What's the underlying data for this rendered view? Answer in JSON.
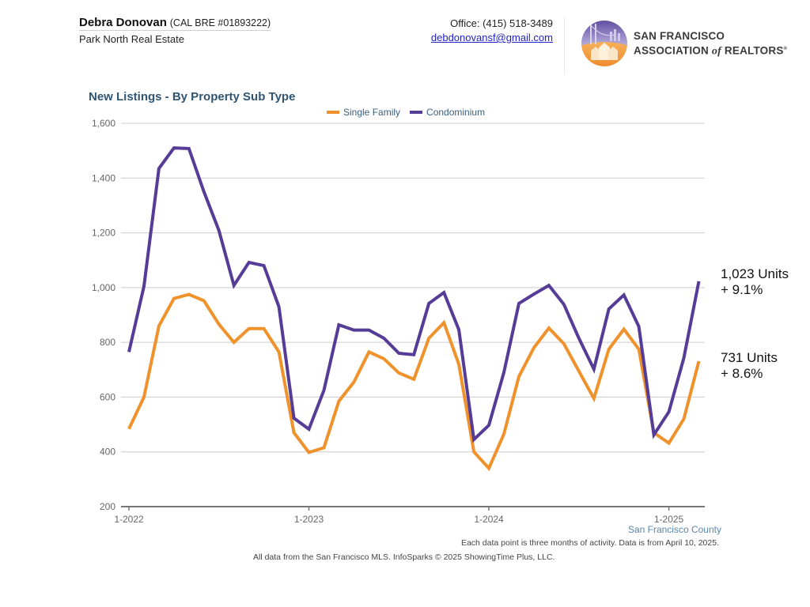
{
  "header": {
    "agent_name": "Debra Donovan",
    "agent_license": "(CAL BRE #01893222)",
    "company": "Park North Real Estate",
    "office_phone": "Office: (415) 518-3489",
    "email": "debdonovansf@gmail.com",
    "logo": {
      "icon": "golden-gate-bridge-houses-logo-icon",
      "line1": "San Francisco",
      "line2_a": "Association ",
      "line2_of": "of",
      "line2_b": " Realtors",
      "trademark": "®"
    }
  },
  "chart_data": {
    "type": "line",
    "title": "New Listings - By Property Sub Type",
    "xlabel": "",
    "ylabel": "",
    "ylim": [
      200,
      1600
    ],
    "yticks": [
      200,
      400,
      600,
      800,
      1000,
      1200,
      1400,
      1600
    ],
    "ytick_labels": [
      "200",
      "400",
      "600",
      "800",
      "1,000",
      "1,200",
      "1,400",
      "1,600"
    ],
    "xtick_labels": [
      "1-2022",
      "1-2023",
      "1-2024",
      "1-2025"
    ],
    "xtick_index": [
      0,
      12,
      24,
      36
    ],
    "grid": true,
    "legend_position": "top-center",
    "x": [
      "1-2022",
      "2-2022",
      "3-2022",
      "4-2022",
      "5-2022",
      "6-2022",
      "7-2022",
      "8-2022",
      "9-2022",
      "10-2022",
      "11-2022",
      "12-2022",
      "1-2023",
      "2-2023",
      "3-2023",
      "4-2023",
      "5-2023",
      "6-2023",
      "7-2023",
      "8-2023",
      "9-2023",
      "10-2023",
      "11-2023",
      "12-2023",
      "1-2024",
      "2-2024",
      "3-2024",
      "4-2024",
      "5-2024",
      "6-2024",
      "7-2024",
      "8-2024",
      "9-2024",
      "10-2024",
      "11-2024",
      "12-2024",
      "1-2025",
      "2-2025",
      "3-2025"
    ],
    "series": [
      {
        "name": "Single Family",
        "color": "#f0922b",
        "values": [
          484,
          600,
          860,
          960,
          975,
          952,
          866,
          800,
          850,
          850,
          765,
          470,
          398,
          415,
          585,
          655,
          765,
          740,
          688,
          665,
          815,
          872,
          720,
          400,
          340,
          465,
          675,
          780,
          852,
          795,
          695,
          595,
          775,
          848,
          775,
          470,
          432,
          520,
          731
        ]
      },
      {
        "name": "Condominium",
        "color": "#553c96",
        "values": [
          765,
          1005,
          1435,
          1510,
          1508,
          1350,
          1208,
          1008,
          1092,
          1080,
          930,
          523,
          483,
          625,
          864,
          845,
          845,
          815,
          760,
          755,
          942,
          982,
          846,
          445,
          497,
          690,
          942,
          976,
          1008,
          939,
          815,
          702,
          922,
          973,
          858,
          462,
          546,
          743,
          1023
        ]
      }
    ],
    "annotations": [
      {
        "series": "Condominium",
        "line1": "1,023 Units",
        "line2": "+ 9.1%"
      },
      {
        "series": "Single Family",
        "line1": "731 Units",
        "line2": "+ 8.6%"
      }
    ],
    "region_label": "San Francisco County",
    "note": "Each data point is three months of activity. Data is from April 10, 2025."
  },
  "footer": {
    "source": "All data from the San Francisco MLS. InfoSparks © 2025 ShowingTime Plus, LLC."
  }
}
